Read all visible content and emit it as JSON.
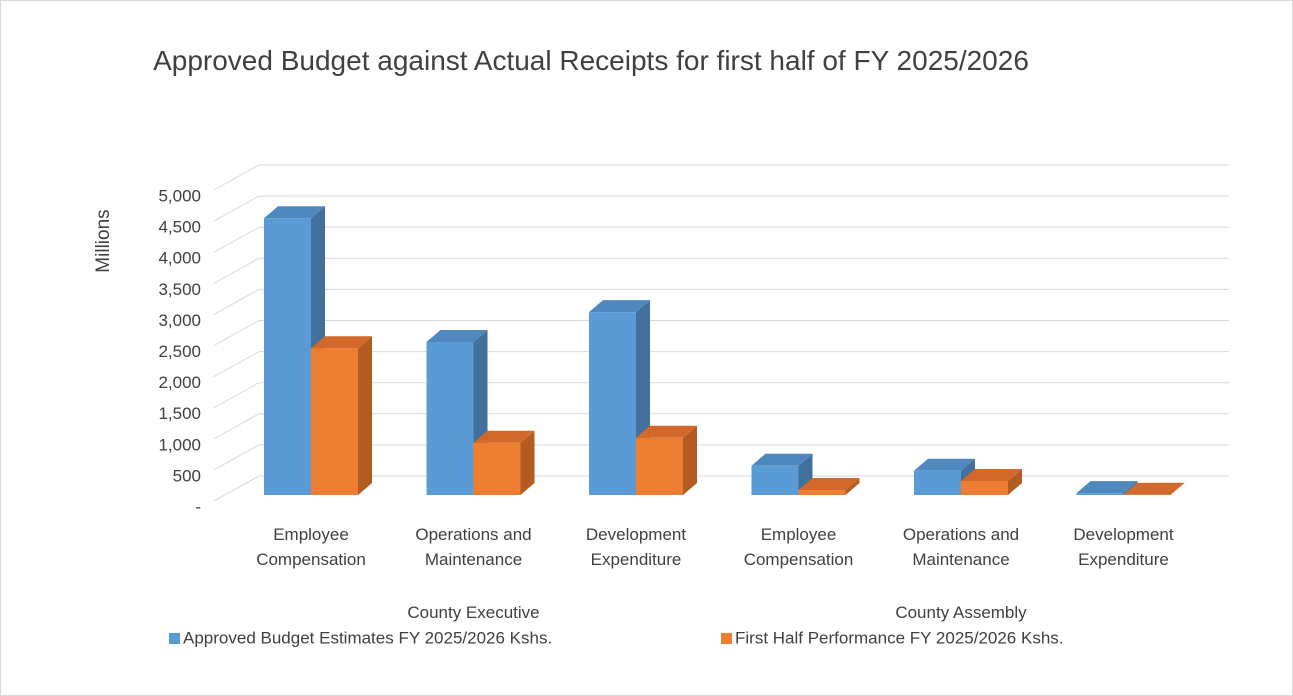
{
  "chart_data": {
    "type": "bar3d",
    "title": "Approved Budget against Actual Receipts for first half of FY 2025/2026",
    "ylabel": "Millions",
    "categories": [
      "Employee Compensation",
      "Operations and Maintenance",
      "Development Expenditure",
      "Employee Compensation",
      "Operations and Maintenance",
      "Development Expenditure"
    ],
    "groups": [
      "County Executive",
      "County Assembly"
    ],
    "series": [
      {
        "name": "Approved Budget Estimates FY 2025/2026 Kshs.",
        "color": "#5b9bd5",
        "side_color": "#41719c",
        "top_color": "#4f88bf",
        "values": [
          4450,
          2460,
          2940,
          470,
          390,
          30
        ]
      },
      {
        "name": "First Half Performance FY 2025/2026 Kshs.",
        "color": "#ed7d31",
        "side_color": "#b35c22",
        "top_color": "#d2692a",
        "values": [
          2360,
          840,
          920,
          80,
          225,
          5
        ]
      }
    ],
    "ylim": [
      0,
      5000
    ],
    "yticks": [
      {
        "value": 0,
        "label": "-"
      },
      500,
      {
        "value": 1000,
        "label": "1,000"
      },
      {
        "value": 1500,
        "label": "1,500"
      },
      {
        "value": 2000,
        "label": "2,000"
      },
      {
        "value": 2500,
        "label": "2,500"
      },
      {
        "value": 3000,
        "label": "3,000"
      },
      {
        "value": 3500,
        "label": "3,500"
      },
      {
        "value": 4000,
        "label": "4,000"
      },
      {
        "value": 4500,
        "label": "4,500"
      },
      {
        "value": 5000,
        "label": "5,000"
      }
    ],
    "grid": true,
    "legend": "bottom"
  }
}
